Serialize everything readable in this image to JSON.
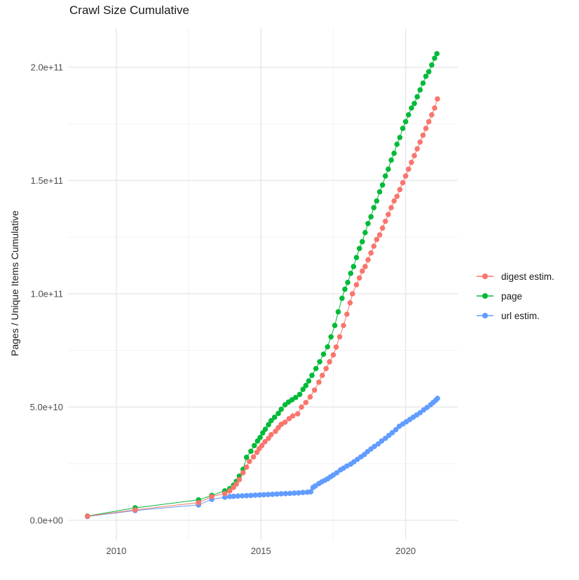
{
  "chart_data": {
    "type": "scatter",
    "title": "Crawl Size Cumulative",
    "xlabel": "",
    "ylabel": "Pages / Unique Items Cumulative",
    "grid": true,
    "legend_position": "right",
    "axes": {
      "x_range": [
        2008.33,
        2021.8
      ],
      "y_range": [
        -8700000000.0,
        217300000000.0
      ],
      "x_major_ticks": [
        {
          "value": 2010,
          "label": "2010"
        },
        {
          "value": 2015,
          "label": "2015"
        },
        {
          "value": 2020,
          "label": "2020"
        }
      ],
      "x_minor_ticks": [
        2012.5,
        2017.5
      ],
      "y_major_ticks": [
        {
          "value": 0,
          "label": "0.0e+00"
        },
        {
          "value": 50000000000.0,
          "label": "5.0e+10"
        },
        {
          "value": 100000000000.0,
          "label": "1.0e+11"
        },
        {
          "value": 150000000000.0,
          "label": "1.5e+11"
        },
        {
          "value": 200000000000.0,
          "label": "2.0e+11"
        }
      ],
      "y_minor_ticks": [
        25000000000.0,
        75000000000.0,
        125000000000.0,
        175000000000.0
      ]
    },
    "colors": {
      "major_grid": "#e6e6e6",
      "minor_grid": "#f2f2f2",
      "axis_text": "#4d4d4d"
    },
    "legend": [
      {
        "label": "digest estim.",
        "color": "#F8766D"
      },
      {
        "label": "page",
        "color": "#00BA38"
      },
      {
        "label": "url estim.",
        "color": "#619CFF"
      }
    ],
    "series": [
      {
        "name": "digest estim.",
        "color": "#F8766D",
        "points": [
          [
            2009.0,
            1800000000.0
          ],
          [
            2010.65,
            4600000000.0
          ],
          [
            2012.84,
            7800000000.0
          ],
          [
            2013.3,
            10500000000.0
          ],
          [
            2013.75,
            11800000000.0
          ],
          [
            2013.92,
            13000000000.0
          ],
          [
            2014.05,
            14500000000.0
          ],
          [
            2014.15,
            16000000000.0
          ],
          [
            2014.25,
            18000000000.0
          ],
          [
            2014.38,
            21000000000.0
          ],
          [
            2014.5,
            23500000000.0
          ],
          [
            2014.6,
            26000000000.0
          ],
          [
            2014.74,
            28000000000.0
          ],
          [
            2014.86,
            30000000000.0
          ],
          [
            2014.94,
            31600000000.0
          ],
          [
            2015.03,
            33000000000.0
          ],
          [
            2015.14,
            34700000000.0
          ],
          [
            2015.26,
            36200000000.0
          ],
          [
            2015.35,
            37800000000.0
          ],
          [
            2015.5,
            39300000000.0
          ],
          [
            2015.6,
            40900000000.0
          ],
          [
            2015.7,
            42400000000.0
          ],
          [
            2015.83,
            43300000000.0
          ],
          [
            2015.97,
            44900000000.0
          ],
          [
            2016.1,
            46100000000.0
          ],
          [
            2016.27,
            47000000000.0
          ],
          [
            2016.4,
            50000000000.0
          ],
          [
            2016.55,
            52000000000.0
          ],
          [
            2016.7,
            54500000000.0
          ],
          [
            2016.85,
            57500000000.0
          ],
          [
            2017.0,
            61000000000.0
          ],
          [
            2017.12,
            64000000000.0
          ],
          [
            2017.25,
            67000000000.0
          ],
          [
            2017.37,
            70000000000.0
          ],
          [
            2017.5,
            73000000000.0
          ],
          [
            2017.6,
            76500000000.0
          ],
          [
            2017.72,
            81000000000.0
          ],
          [
            2017.85,
            86000000000.0
          ],
          [
            2017.97,
            91000000000.0
          ],
          [
            2018.08,
            96000000000.0
          ],
          [
            2018.16,
            100000000000.0
          ],
          [
            2018.3,
            104000000000.0
          ],
          [
            2018.4,
            107000000000.0
          ],
          [
            2018.5,
            110000000000.0
          ],
          [
            2018.6,
            112000000000.0
          ],
          [
            2018.7,
            115000000000.0
          ],
          [
            2018.8,
            118000000000.0
          ],
          [
            2018.9,
            121000000000.0
          ],
          [
            2019.0,
            124000000000.0
          ],
          [
            2019.1,
            126000000000.0
          ],
          [
            2019.2,
            129000000000.0
          ],
          [
            2019.3,
            132000000000.0
          ],
          [
            2019.4,
            135000000000.0
          ],
          [
            2019.5,
            138000000000.0
          ],
          [
            2019.6,
            141000000000.0
          ],
          [
            2019.7,
            143000000000.0
          ],
          [
            2019.8,
            146000000000.0
          ],
          [
            2019.9,
            149000000000.0
          ],
          [
            2020.0,
            152000000000.0
          ],
          [
            2020.1,
            155000000000.0
          ],
          [
            2020.2,
            158000000000.0
          ],
          [
            2020.3,
            161000000000.0
          ],
          [
            2020.4,
            164000000000.0
          ],
          [
            2020.5,
            167000000000.0
          ],
          [
            2020.6,
            170000000000.0
          ],
          [
            2020.7,
            173000000000.0
          ],
          [
            2020.8,
            176000000000.0
          ],
          [
            2020.9,
            179000000000.0
          ],
          [
            2021.0,
            182000000000.0
          ],
          [
            2021.1,
            186000000000.0
          ]
        ]
      },
      {
        "name": "page",
        "color": "#00BA38",
        "points": [
          [
            2009.0,
            1900000000.0
          ],
          [
            2010.65,
            5500000000.0
          ],
          [
            2012.84,
            9000000000.0
          ],
          [
            2013.3,
            11000000000.0
          ],
          [
            2013.75,
            13000000000.0
          ],
          [
            2013.92,
            14000000000.0
          ],
          [
            2014.05,
            15500000000.0
          ],
          [
            2014.15,
            17200000000.0
          ],
          [
            2014.25,
            19500000000.0
          ],
          [
            2014.38,
            22500000000.0
          ],
          [
            2014.5,
            27800000000.0
          ],
          [
            2014.65,
            30500000000.0
          ],
          [
            2014.77,
            33000000000.0
          ],
          [
            2014.88,
            35000000000.0
          ],
          [
            2014.97,
            36600000000.0
          ],
          [
            2015.06,
            38600000000.0
          ],
          [
            2015.15,
            40200000000.0
          ],
          [
            2015.26,
            42200000000.0
          ],
          [
            2015.35,
            44000000000.0
          ],
          [
            2015.47,
            45500000000.0
          ],
          [
            2015.6,
            47200000000.0
          ],
          [
            2015.7,
            49000000000.0
          ],
          [
            2015.83,
            51000000000.0
          ],
          [
            2015.95,
            52200000000.0
          ],
          [
            2016.07,
            53200000000.0
          ],
          [
            2016.2,
            54200000000.0
          ],
          [
            2016.34,
            55600000000.0
          ],
          [
            2016.45,
            57800000000.0
          ],
          [
            2016.55,
            59500000000.0
          ],
          [
            2016.65,
            61500000000.0
          ],
          [
            2016.76,
            64000000000.0
          ],
          [
            2016.9,
            67000000000.0
          ],
          [
            2017.03,
            70000000000.0
          ],
          [
            2017.16,
            73300000000.0
          ],
          [
            2017.3,
            76600000000.0
          ],
          [
            2017.42,
            81000000000.0
          ],
          [
            2017.55,
            86000000000.0
          ],
          [
            2017.67,
            92000000000.0
          ],
          [
            2017.8,
            98000000000.0
          ],
          [
            2017.9,
            102000000000.0
          ],
          [
            2018.0,
            105000000000.0
          ],
          [
            2018.1,
            109000000000.0
          ],
          [
            2018.2,
            112000000000.0
          ],
          [
            2018.3,
            116000000000.0
          ],
          [
            2018.4,
            120000000000.0
          ],
          [
            2018.5,
            123000000000.0
          ],
          [
            2018.6,
            127000000000.0
          ],
          [
            2018.7,
            131000000000.0
          ],
          [
            2018.8,
            134000000000.0
          ],
          [
            2018.9,
            138000000000.0
          ],
          [
            2019.0,
            141000000000.0
          ],
          [
            2019.1,
            145000000000.0
          ],
          [
            2019.2,
            148000000000.0
          ],
          [
            2019.3,
            152000000000.0
          ],
          [
            2019.4,
            155000000000.0
          ],
          [
            2019.5,
            159000000000.0
          ],
          [
            2019.6,
            162000000000.0
          ],
          [
            2019.7,
            166000000000.0
          ],
          [
            2019.8,
            169000000000.0
          ],
          [
            2019.9,
            173000000000.0
          ],
          [
            2020.0,
            176000000000.0
          ],
          [
            2020.1,
            179000000000.0
          ],
          [
            2020.2,
            182000000000.0
          ],
          [
            2020.3,
            184000000000.0
          ],
          [
            2020.4,
            187000000000.0
          ],
          [
            2020.5,
            190000000000.0
          ],
          [
            2020.6,
            193000000000.0
          ],
          [
            2020.7,
            196000000000.0
          ],
          [
            2020.8,
            198000000000.0
          ],
          [
            2020.9,
            201000000000.0
          ],
          [
            2021.0,
            204000000000.0
          ],
          [
            2021.08,
            206000000000.0
          ]
        ]
      },
      {
        "name": "url estim.",
        "color": "#619CFF",
        "points": [
          [
            2009.0,
            1700000000.0
          ],
          [
            2010.65,
            4300000000.0
          ],
          [
            2012.84,
            6800000000.0
          ],
          [
            2013.3,
            9300000000.0
          ],
          [
            2013.75,
            10200000000.0
          ],
          [
            2013.92,
            10500000000.0
          ],
          [
            2014.05,
            10600000000.0
          ],
          [
            2014.2,
            10700000000.0
          ],
          [
            2014.35,
            10800000000.0
          ],
          [
            2014.5,
            10900000000.0
          ],
          [
            2014.65,
            11000000000.0
          ],
          [
            2014.8,
            11100000000.0
          ],
          [
            2014.95,
            11200000000.0
          ],
          [
            2015.1,
            11300000000.0
          ],
          [
            2015.25,
            11400000000.0
          ],
          [
            2015.4,
            11500000000.0
          ],
          [
            2015.55,
            11600000000.0
          ],
          [
            2015.7,
            11700000000.0
          ],
          [
            2015.85,
            11800000000.0
          ],
          [
            2016.0,
            11900000000.0
          ],
          [
            2016.15,
            12000000000.0
          ],
          [
            2016.3,
            12100000000.0
          ],
          [
            2016.45,
            12300000000.0
          ],
          [
            2016.6,
            12400000000.0
          ],
          [
            2016.72,
            12600000000.0
          ],
          [
            2016.8,
            14500000000.0
          ],
          [
            2016.88,
            15200000000.0
          ],
          [
            2017.0,
            16200000000.0
          ],
          [
            2017.1,
            17000000000.0
          ],
          [
            2017.2,
            17600000000.0
          ],
          [
            2017.3,
            18300000000.0
          ],
          [
            2017.4,
            19200000000.0
          ],
          [
            2017.5,
            20000000000.0
          ],
          [
            2017.62,
            21000000000.0
          ],
          [
            2017.75,
            22300000000.0
          ],
          [
            2017.85,
            23000000000.0
          ],
          [
            2017.97,
            24000000000.0
          ],
          [
            2018.1,
            24800000000.0
          ],
          [
            2018.21,
            25800000000.0
          ],
          [
            2018.33,
            26900000000.0
          ],
          [
            2018.45,
            28000000000.0
          ],
          [
            2018.57,
            29000000000.0
          ],
          [
            2018.68,
            30300000000.0
          ],
          [
            2018.8,
            31500000000.0
          ],
          [
            2018.92,
            32600000000.0
          ],
          [
            2019.05,
            33700000000.0
          ],
          [
            2019.17,
            35000000000.0
          ],
          [
            2019.3,
            36200000000.0
          ],
          [
            2019.42,
            37500000000.0
          ],
          [
            2019.54,
            38700000000.0
          ],
          [
            2019.66,
            40000000000.0
          ],
          [
            2019.78,
            41500000000.0
          ],
          [
            2019.9,
            42500000000.0
          ],
          [
            2020.02,
            43500000000.0
          ],
          [
            2020.14,
            44500000000.0
          ],
          [
            2020.26,
            45500000000.0
          ],
          [
            2020.38,
            46500000000.0
          ],
          [
            2020.5,
            47500000000.0
          ],
          [
            2020.62,
            48700000000.0
          ],
          [
            2020.74,
            49800000000.0
          ],
          [
            2020.86,
            51000000000.0
          ],
          [
            2020.95,
            52000000000.0
          ],
          [
            2021.04,
            53000000000.0
          ],
          [
            2021.1,
            53800000000.0
          ]
        ]
      }
    ]
  }
}
